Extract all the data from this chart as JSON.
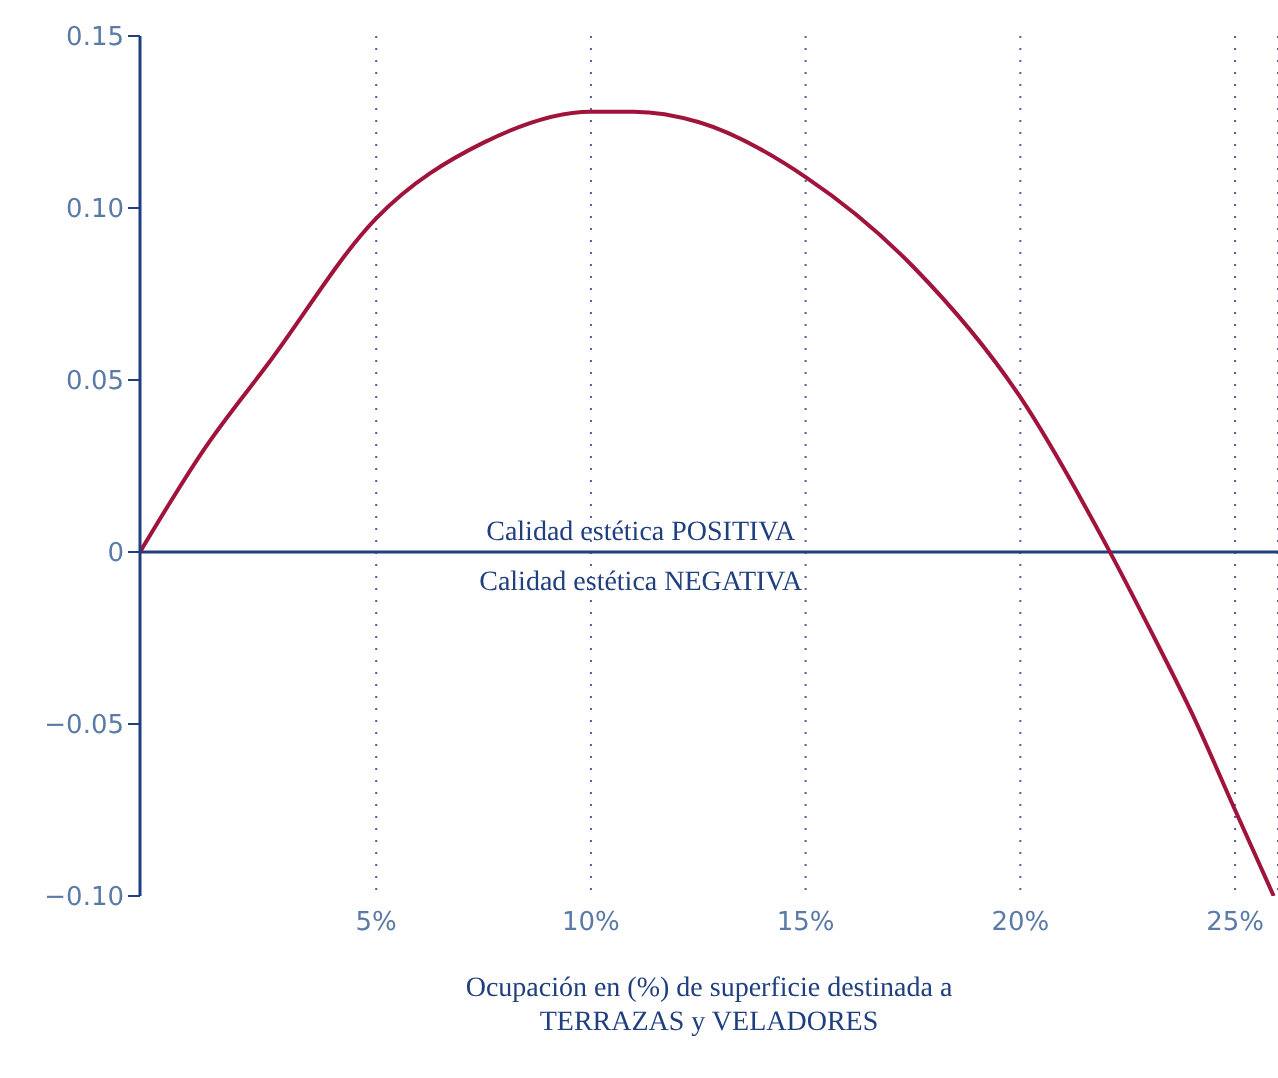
{
  "chart_data": {
    "type": "line",
    "xlabel": "Ocupación en (%) de superficie destinada a\nTERRAZAS y VELADORES",
    "annotations": [
      "Calidad estética POSITIVA",
      "Calidad estética NEGATIVA"
    ],
    "x": [
      -0.5,
      1,
      2.5,
      5,
      7.5,
      10,
      11,
      12.5,
      15,
      17.5,
      20,
      22,
      23,
      24,
      25,
      25.9
    ],
    "series": [
      {
        "color": "#a0143c",
        "values": [
          0,
          0.03,
          0.055,
          0.097,
          0.119,
          0.128,
          0.128,
          0.125,
          0.109,
          0.083,
          0.045,
          0.002,
          -0.022,
          -0.047,
          -0.075,
          -0.1
        ]
      }
    ],
    "xlim": [
      -0.5,
      26
    ],
    "xticks": [
      {
        "value": 5,
        "label": "5%"
      },
      {
        "value": 10,
        "label": "10%"
      },
      {
        "value": 15,
        "label": "15%"
      },
      {
        "value": 20,
        "label": "20%"
      },
      {
        "value": 25,
        "label": "25%"
      }
    ],
    "ylim": [
      -0.1,
      0.15
    ],
    "yticks": [
      {
        "value": -0.1,
        "label": "−0.10"
      },
      {
        "value": -0.05,
        "label": "−0.05"
      },
      0,
      {
        "value": 0.05,
        "label": "0.05"
      },
      {
        "value": 0.1,
        "label": "0.10"
      },
      {
        "value": 0.15,
        "label": "0.15"
      }
    ],
    "ref_lines": [
      {
        "axis": "y",
        "value": 0,
        "color": "#1f3f7f"
      }
    ],
    "grid": "x",
    "marker": "none",
    "line_style": "solid",
    "legend": false
  }
}
